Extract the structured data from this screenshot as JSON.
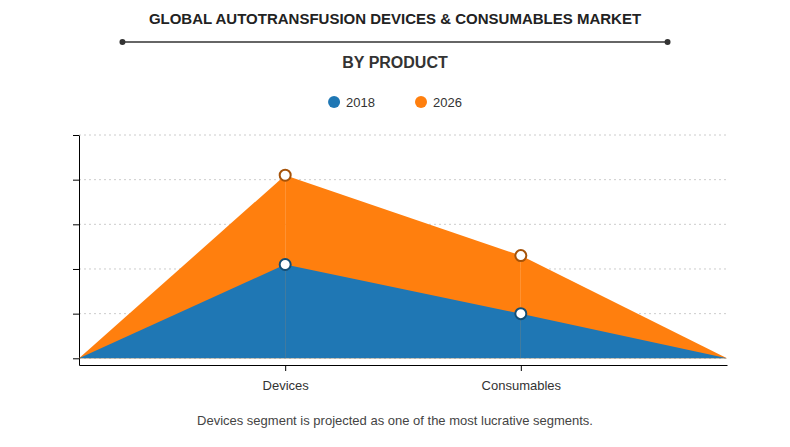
{
  "chart_data": {
    "type": "area",
    "title": "GLOBAL AUTOTRANSFUSION DEVICES & CONSUMABLES MARKET",
    "subtitle": "BY PRODUCT",
    "categories": [
      "Devices",
      "Consumables"
    ],
    "series": [
      {
        "name": "2018",
        "values": [
          0.42,
          0.2
        ]
      },
      {
        "name": "2026",
        "values": [
          0.82,
          0.46
        ]
      }
    ],
    "ylim": [
      -0.03,
      1.0
    ],
    "yticks": [
      0,
      0.2,
      0.4,
      0.6,
      0.8,
      1.0
    ],
    "grid": true,
    "legend": "top",
    "marker": "circle",
    "tick_labels": "x",
    "annotation": "Devices segment is projected as one of the most lucrative segments."
  }
}
